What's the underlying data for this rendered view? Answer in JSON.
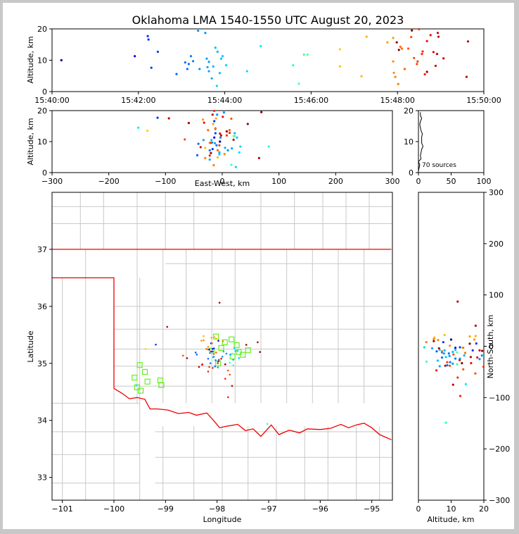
{
  "title": "Oklahoma LMA 1540-1550 UTC August 20, 2023",
  "source_count_label": "70 sources",
  "chart_data": [
    {
      "id": "time_altitude",
      "type": "scatter",
      "ylabel": "Altitude, km",
      "xlabel": "",
      "xlim": [
        0,
        600
      ],
      "ylim": [
        0,
        20
      ],
      "x_tick_labels": [
        "15:40:00",
        "15:42:00",
        "15:44:00",
        "15:46:00",
        "15:48:00",
        "15:50:00"
      ],
      "y_tick_labels": [
        "0",
        "10",
        "20"
      ]
    },
    {
      "id": "eastwest_altitude",
      "type": "scatter",
      "xlabel": "East-West, km",
      "ylabel": "Altitude, km",
      "xlim": [
        -300,
        300
      ],
      "ylim": [
        0,
        20
      ],
      "x_tick_labels": [
        "−300",
        "−200",
        "−100",
        "0",
        "100",
        "200",
        "300"
      ],
      "y_tick_labels": [
        "0",
        "10",
        "20"
      ]
    },
    {
      "id": "altitude_histogram",
      "type": "line",
      "xlim": [
        0,
        100
      ],
      "ylim": [
        0,
        20
      ],
      "x_tick_labels": [
        "0",
        "50",
        "100"
      ],
      "y_tick_labels": [
        "0",
        "10",
        "20"
      ]
    },
    {
      "id": "plan_view",
      "type": "scatter",
      "xlabel": "Longitude",
      "ylabel": "Latitude",
      "xlim": [
        -101.2,
        -94.6
      ],
      "ylim": [
        32.6,
        38.0
      ],
      "x_tick_labels": [
        "−101",
        "−100",
        "−99",
        "−98",
        "−97",
        "−96",
        "−95"
      ],
      "y_tick_labels": [
        "33",
        "34",
        "35",
        "36",
        "37"
      ]
    },
    {
      "id": "altitude_northsouth",
      "type": "scatter",
      "xlabel": "Altitude, km",
      "ylabel": "North-South, km",
      "xlim": [
        0,
        20
      ],
      "ylim": [
        -300,
        300
      ],
      "x_tick_labels": [
        "0",
        "10",
        "20"
      ],
      "y_tick_labels": [
        "−300",
        "−200",
        "−100",
        "0",
        "100",
        "200",
        "300"
      ]
    }
  ],
  "sources": [
    {
      "t": 13,
      "alt": 10,
      "x": -4,
      "y": 13,
      "c": "#00008f"
    },
    {
      "t": 115,
      "alt": 11.3,
      "x": -14,
      "y": -3,
      "c": "#0000ee"
    },
    {
      "t": 133,
      "alt": 17.7,
      "x": -114,
      "y": 5.4,
      "c": "#0030ff"
    },
    {
      "t": 134,
      "alt": 16.6,
      "x": -14,
      "y": -8,
      "c": "#0030ff"
    },
    {
      "t": 138,
      "alt": 7.6,
      "x": -17,
      "y": 8,
      "c": "#0030ff"
    },
    {
      "t": 147,
      "alt": 12.7,
      "x": -12,
      "y": -2,
      "c": "#0040ff"
    },
    {
      "t": 173,
      "alt": 5.6,
      "x": -44,
      "y": -10,
      "c": "#0060ff"
    },
    {
      "t": 185,
      "alt": 9.3,
      "x": -42,
      "y": -14,
      "c": "#0070ff"
    },
    {
      "t": 188,
      "alt": 7.2,
      "x": -22,
      "y": -22,
      "c": "#0070ff"
    },
    {
      "t": 190,
      "alt": 8.8,
      "x": -10,
      "y": -37,
      "c": "#0070ff"
    },
    {
      "t": 193,
      "alt": 11.3,
      "x": -3,
      "y": -24,
      "c": "#0080ff"
    },
    {
      "t": 196,
      "alt": 9.7,
      "x": -18,
      "y": -31,
      "c": "#0080ff"
    },
    {
      "t": 203,
      "alt": 19.4,
      "x": 3,
      "y": -18,
      "c": "#0090ff"
    },
    {
      "t": 205,
      "alt": 7.2,
      "x": 10,
      "y": -12,
      "c": "#0090ff"
    },
    {
      "t": 213,
      "alt": 18.7,
      "x": -9,
      "y": -25,
      "c": "#0090ff"
    },
    {
      "t": 215,
      "alt": 10.5,
      "x": -33,
      "y": -34,
      "c": "#00a0ff"
    },
    {
      "t": 216,
      "alt": 7.8,
      "x": 17,
      "y": -14,
      "c": "#00a0ff"
    },
    {
      "t": 218,
      "alt": 9.5,
      "x": -13,
      "y": -19,
      "c": "#00a0ff"
    },
    {
      "t": 222,
      "alt": 4.2,
      "x": -22,
      "y": -4,
      "c": "#00a8ff"
    },
    {
      "t": 218,
      "alt": 6.5,
      "x": -5,
      "y": -39,
      "c": "#00a8ff"
    },
    {
      "t": 224,
      "alt": 8.0,
      "x": 5,
      "y": -8,
      "c": "#00b0ff"
    },
    {
      "t": 227,
      "alt": 14.0,
      "x": -12,
      "y": -18,
      "c": "#00b8ff"
    },
    {
      "t": 230,
      "alt": 12.7,
      "x": 22,
      "y": -24,
      "c": "#00b8ff"
    },
    {
      "t": 233,
      "alt": 5.9,
      "x": -5,
      "y": -28,
      "c": "#00c0ff"
    },
    {
      "t": 235,
      "alt": 10.5,
      "x": -19,
      "y": -11,
      "c": "#00c0ff"
    },
    {
      "t": 237,
      "alt": 11.3,
      "x": 26,
      "y": -7,
      "c": "#00c8ff"
    },
    {
      "t": 242,
      "alt": 8.4,
      "x": 32,
      "y": -21,
      "c": "#00d0ff"
    },
    {
      "t": 229,
      "alt": 1.8,
      "x": 24,
      "y": -2,
      "c": "#00d8ff"
    },
    {
      "t": 271,
      "alt": 6.5,
      "x": 30,
      "y": -7,
      "c": "#00e0ff"
    },
    {
      "t": 290,
      "alt": 14.5,
      "x": -148,
      "y": -74,
      "c": "#00f0f0"
    },
    {
      "t": 335,
      "alt": 8.4,
      "x": 82,
      "y": -149,
      "c": "#20ffd8"
    },
    {
      "t": 343,
      "alt": 2.5,
      "x": 16,
      "y": -30,
      "c": "#40ffc0"
    },
    {
      "t": 350,
      "alt": 11.8,
      "x": 22,
      "y": -35,
      "c": "#40ffb0"
    },
    {
      "t": 355,
      "alt": 11.8,
      "x": 20,
      "y": -12,
      "c": "#60ff98"
    },
    {
      "t": 400,
      "alt": 13.5,
      "x": -132,
      "y": -3,
      "c": "#ffd000"
    },
    {
      "t": 400,
      "alt": 8.0,
      "x": -30,
      "y": 22,
      "c": "#ffc000"
    },
    {
      "t": 430,
      "alt": 4.9,
      "x": -8,
      "y": 17,
      "c": "#ffb800"
    },
    {
      "t": 437,
      "alt": 17.5,
      "x": -11,
      "y": 20,
      "c": "#ffb000"
    },
    {
      "t": 466,
      "alt": 15.7,
      "x": -16,
      "y": 19,
      "c": "#ffa000"
    },
    {
      "t": 474,
      "alt": 17.1,
      "x": -34,
      "y": 13,
      "c": "#ff9800"
    },
    {
      "t": 474,
      "alt": 9.6,
      "x": -22,
      "y": 1,
      "c": "#ff9000"
    },
    {
      "t": 475,
      "alt": 6.0,
      "x": 4,
      "y": 12,
      "c": "#ff8800"
    },
    {
      "t": 477,
      "alt": 4.7,
      "x": -30,
      "y": 14,
      "c": "#ff8000"
    },
    {
      "t": 481,
      "alt": 2.4,
      "x": -15,
      "y": 8,
      "c": "#ff7800"
    },
    {
      "t": 484,
      "alt": 14.3,
      "x": -12,
      "y": -13,
      "c": "#ff7000"
    },
    {
      "t": 486,
      "alt": 13.7,
      "x": -25,
      "y": -3,
      "c": "#ff6800"
    },
    {
      "t": 490,
      "alt": 7.2,
      "x": -8,
      "y": -10,
      "c": "#ff6000"
    },
    {
      "t": 495,
      "alt": 13.7,
      "x": 13,
      "y": -45,
      "c": "#ff5800"
    },
    {
      "t": 499,
      "alt": 17.4,
      "x": 16,
      "y": -53,
      "c": "#ff5000"
    },
    {
      "t": 503,
      "alt": 10.7,
      "x": -66,
      "y": -16,
      "c": "#ff4800"
    },
    {
      "t": 507,
      "alt": 8.8,
      "x": -5,
      "y": -31,
      "c": "#ff4000"
    },
    {
      "t": 508,
      "alt": 9.6,
      "x": -20,
      "y": -38,
      "c": "#ff3800"
    },
    {
      "t": 510,
      "alt": 19.9,
      "x": -14,
      "y": -40,
      "c": "#ff3000"
    },
    {
      "t": 514,
      "alt": 12.0,
      "x": 8,
      "y": -61,
      "c": "#ff2800"
    },
    {
      "t": 515,
      "alt": 12.8,
      "x": 13,
      "y": -97,
      "c": "#ff2000"
    },
    {
      "t": 518,
      "alt": 5.5,
      "x": -22,
      "y": -47,
      "c": "#ff1800"
    },
    {
      "t": 521,
      "alt": 16.1,
      "x": -32,
      "y": -33,
      "c": "#f01000"
    },
    {
      "t": 526,
      "alt": 18.0,
      "x": 1,
      "y": -22,
      "c": "#e80800"
    },
    {
      "t": 530,
      "alt": 12.6,
      "x": -4,
      "y": -27,
      "c": "#e00000"
    },
    {
      "t": 533,
      "alt": 8.2,
      "x": -38,
      "y": -38,
      "c": "#d80000"
    },
    {
      "t": 536,
      "alt": 18.7,
      "x": -17,
      "y": -8,
      "c": "#d00000"
    },
    {
      "t": 537,
      "alt": 17.5,
      "x": -94,
      "y": 40,
      "c": "#c80000"
    },
    {
      "t": 535,
      "alt": 12.0,
      "x": -2,
      "y": 87,
      "c": "#c80000"
    },
    {
      "t": 544,
      "alt": 10.6,
      "x": 20,
      "y": -75,
      "c": "#c00000"
    },
    {
      "t": 576,
      "alt": 4.7,
      "x": 65,
      "y": 10,
      "c": "#b80000"
    },
    {
      "t": 578,
      "alt": 16.0,
      "x": -59,
      "y": -21,
      "c": "#b00000"
    },
    {
      "t": 521,
      "alt": 6.3,
      "x": -20,
      "y": -4,
      "c": "#a00000"
    },
    {
      "t": 479,
      "alt": 15.7,
      "x": 45,
      "y": 5,
      "c": "#900000"
    },
    {
      "t": 500,
      "alt": 19.5,
      "x": 69,
      "y": -9,
      "c": "#880000"
    },
    {
      "t": 482,
      "alt": 13.3,
      "x": 8,
      "y": -33,
      "c": "#800000"
    }
  ],
  "stations": [
    {
      "lon": -99.6,
      "lat": 34.75
    },
    {
      "lon": -99.55,
      "lat": 34.58
    },
    {
      "lon": -99.48,
      "lat": 34.52
    },
    {
      "lon": -99.5,
      "lat": 34.97
    },
    {
      "lon": -99.4,
      "lat": 34.85
    },
    {
      "lon": -99.35,
      "lat": 34.68
    },
    {
      "lon": -99.1,
      "lat": 34.7
    },
    {
      "lon": -99.08,
      "lat": 34.62
    },
    {
      "lon": -98.1,
      "lat": 35.22
    },
    {
      "lon": -98.02,
      "lat": 35.47
    },
    {
      "lon": -97.92,
      "lat": 35.27
    },
    {
      "lon": -97.98,
      "lat": 35.0
    },
    {
      "lon": -97.85,
      "lat": 35.37
    },
    {
      "lon": -97.72,
      "lat": 35.42
    },
    {
      "lon": -97.7,
      "lat": 35.12
    },
    {
      "lon": -97.62,
      "lat": 35.32
    },
    {
      "lon": -97.58,
      "lat": 35.2
    },
    {
      "lon": -97.5,
      "lat": 35.15
    },
    {
      "lon": -97.4,
      "lat": 35.23
    }
  ]
}
